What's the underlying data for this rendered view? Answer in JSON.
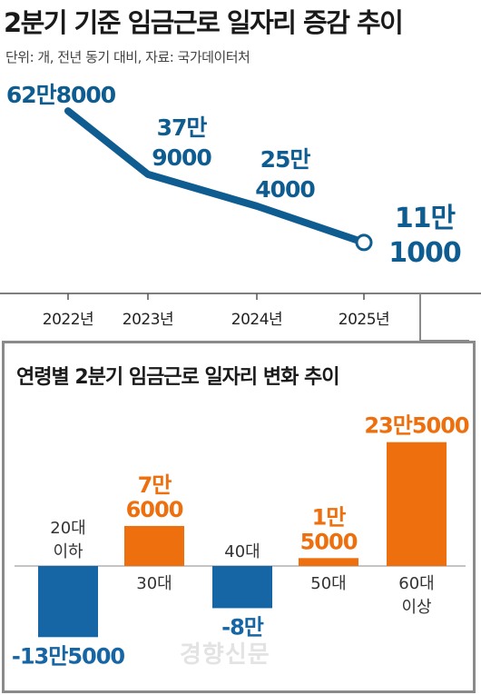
{
  "header": {
    "title": "2분기 기준 임금근로 일자리 증감 추이",
    "unit_note": "단위: 개, 전년 동기 대비, 자료: 국가데이터처"
  },
  "chart_data": [
    {
      "type": "line",
      "title": "2분기 기준 임금근로 일자리 증감 추이",
      "x": [
        "2022년",
        "2023년",
        "2024년",
        "2025년"
      ],
      "series": [
        {
          "values": [
            628000,
            379000,
            254000,
            111000
          ],
          "labels": [
            [
              "62만8000"
            ],
            [
              "37만",
              "9000"
            ],
            [
              "25만",
              "4000"
            ],
            [
              "11만",
              "1000"
            ]
          ]
        }
      ],
      "colors": {
        "line": "#0f5c91",
        "label": "#0f5c91",
        "marker_fill": "#ffffff",
        "axis": "#555555"
      }
    },
    {
      "type": "bar",
      "title": "연령별 2분기 임금근로 일자리 변화 추이",
      "categories": [
        [
          "20대",
          "이하"
        ],
        [
          "30대"
        ],
        [
          "40대"
        ],
        [
          "50대"
        ],
        [
          "60대",
          "이상"
        ]
      ],
      "values": [
        -135000,
        76000,
        -80000,
        15000,
        235000
      ],
      "value_labels": [
        [
          "-13만5000"
        ],
        [
          "7만",
          "6000"
        ],
        [
          "-8만"
        ],
        [
          "1만",
          "5000"
        ],
        [
          "23만5000"
        ]
      ],
      "colors": {
        "positive": "#ee6f0d",
        "negative": "#1665a4",
        "positive_label": "#ee6f0d",
        "negative_label": "#1665a4"
      }
    }
  ],
  "watermark": "경향신문"
}
